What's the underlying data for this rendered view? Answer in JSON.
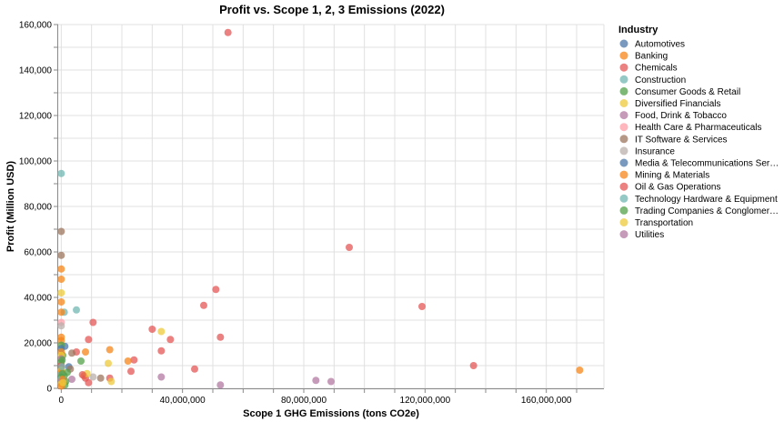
{
  "chart_data": {
    "type": "scatter",
    "title": "Profit vs. Scope 1, 2, 3 Emissions (2022)",
    "xlabel": "Scope 1 GHG Emissions (tons CO2e)",
    "ylabel": "Profit (Million USD)",
    "xlim": [
      -1000000,
      179000000
    ],
    "ylim": [
      0,
      160000
    ],
    "x_ticks": [
      0,
      40000000,
      80000000,
      120000000,
      160000000
    ],
    "x_tick_labels": [
      "0",
      "40,000,000",
      "80,000,000",
      "120,000,000",
      "160,000,000"
    ],
    "y_ticks": [
      0,
      20000,
      40000,
      60000,
      80000,
      100000,
      120000,
      140000,
      160000
    ],
    "y_tick_labels": [
      "0",
      "20,000",
      "40,000",
      "60,000",
      "80,000",
      "100,000",
      "120,000",
      "140,000",
      "160,000"
    ],
    "grid": true,
    "legend": {
      "title": "Industry",
      "position": "right",
      "items": [
        {
          "label": "Automotives",
          "color": "#4c78a8"
        },
        {
          "label": "Banking",
          "color": "#f58518"
        },
        {
          "label": "Chemicals",
          "color": "#e45756"
        },
        {
          "label": "Construction",
          "color": "#72b7b2"
        },
        {
          "label": "Consumer Goods & Retail",
          "color": "#54a24b"
        },
        {
          "label": "Diversified Financials",
          "color": "#eeca3b"
        },
        {
          "label": "Food, Drink & Tobacco",
          "color": "#b279a2"
        },
        {
          "label": "Health Care & Pharmaceuticals",
          "color": "#ff9da6"
        },
        {
          "label": "IT Software & Services",
          "color": "#9d755d"
        },
        {
          "label": "Insurance",
          "color": "#bab0ac"
        },
        {
          "label": "Media & Telecommunications Ser…",
          "color": "#4c78a8"
        },
        {
          "label": "Mining & Materials",
          "color": "#f58518"
        },
        {
          "label": "Oil & Gas Operations",
          "color": "#e45756"
        },
        {
          "label": "Technology Hardware & Equipment",
          "color": "#72b7b2"
        },
        {
          "label": "Trading Companies & Conglomer…",
          "color": "#54a24b"
        },
        {
          "label": "Transportation",
          "color": "#eeca3b"
        },
        {
          "label": "Utilities",
          "color": "#b279a2"
        }
      ]
    },
    "points": [
      {
        "x": 55000000,
        "y": 156500,
        "c": 12
      },
      {
        "x": 95000000,
        "y": 62000,
        "c": 12
      },
      {
        "x": 119000000,
        "y": 36000,
        "c": 12
      },
      {
        "x": 136000000,
        "y": 10000,
        "c": 12
      },
      {
        "x": 171000000,
        "y": 8000,
        "c": 11
      },
      {
        "x": 51000000,
        "y": 43500,
        "c": 12
      },
      {
        "x": 47000000,
        "y": 36500,
        "c": 12
      },
      {
        "x": 30000000,
        "y": 26000,
        "c": 12
      },
      {
        "x": 33000000,
        "y": 25000,
        "c": 15
      },
      {
        "x": 36000000,
        "y": 21500,
        "c": 12
      },
      {
        "x": 52500000,
        "y": 22500,
        "c": 12
      },
      {
        "x": 33000000,
        "y": 16500,
        "c": 12
      },
      {
        "x": 24000000,
        "y": 12500,
        "c": 12
      },
      {
        "x": 22000000,
        "y": 12000,
        "c": 11
      },
      {
        "x": 44000000,
        "y": 8500,
        "c": 12
      },
      {
        "x": 23000000,
        "y": 7500,
        "c": 12
      },
      {
        "x": 33000000,
        "y": 5000,
        "c": 6
      },
      {
        "x": 52500000,
        "y": 1500,
        "c": 16
      },
      {
        "x": 84000000,
        "y": 3500,
        "c": 16
      },
      {
        "x": 89000000,
        "y": 3000,
        "c": 16
      },
      {
        "x": 10500000,
        "y": 29000,
        "c": 12
      },
      {
        "x": 9000000,
        "y": 21500,
        "c": 12
      },
      {
        "x": 16000000,
        "y": 17000,
        "c": 11
      },
      {
        "x": 8000000,
        "y": 16000,
        "c": 11
      },
      {
        "x": 15500000,
        "y": 11000,
        "c": 15
      },
      {
        "x": 6500000,
        "y": 12000,
        "c": 14
      },
      {
        "x": 5000000,
        "y": 16000,
        "c": 12
      },
      {
        "x": 3500000,
        "y": 15500,
        "c": 8
      },
      {
        "x": 5000000,
        "y": 34500,
        "c": 13
      },
      {
        "x": 1000000,
        "y": 33500,
        "c": 13
      },
      {
        "x": 10500000,
        "y": 5000,
        "c": 9
      },
      {
        "x": 13000000,
        "y": 4500,
        "c": 8
      },
      {
        "x": 16000000,
        "y": 4500,
        "c": 12
      },
      {
        "x": 16500000,
        "y": 3000,
        "c": 15
      },
      {
        "x": 9000000,
        "y": 2500,
        "c": 12
      },
      {
        "x": 7500000,
        "y": 5500,
        "c": 11
      },
      {
        "x": 8000000,
        "y": 4500,
        "c": 12
      },
      {
        "x": 8500000,
        "y": 6500,
        "c": 15
      },
      {
        "x": 7000000,
        "y": 6000,
        "c": 2
      },
      {
        "x": 3500000,
        "y": 4000,
        "c": 16
      },
      {
        "x": 2500000,
        "y": 9500,
        "c": 10
      },
      {
        "x": 3000000,
        "y": 8500,
        "c": 8
      },
      {
        "x": 2000000,
        "y": 7000,
        "c": 4
      },
      {
        "x": 1500000,
        "y": 3000,
        "c": 14
      },
      {
        "x": 1200000,
        "y": 1500,
        "c": 4
      },
      {
        "x": 1000000,
        "y": 5500,
        "c": 4
      },
      {
        "x": 1200000,
        "y": 18500,
        "c": 0
      },
      {
        "x": 500000,
        "y": 14500,
        "c": 14
      },
      {
        "x": 0,
        "y": 94500,
        "c": 13
      },
      {
        "x": 0,
        "y": 69000,
        "c": 8
      },
      {
        "x": 0,
        "y": 58500,
        "c": 8
      },
      {
        "x": 0,
        "y": 52500,
        "c": 1
      },
      {
        "x": 0,
        "y": 48000,
        "c": 1
      },
      {
        "x": 0,
        "y": 42000,
        "c": 15
      },
      {
        "x": 0,
        "y": 38000,
        "c": 1
      },
      {
        "x": 0,
        "y": 33500,
        "c": 1
      },
      {
        "x": 0,
        "y": 29000,
        "c": 7
      },
      {
        "x": 0,
        "y": 27500,
        "c": 9
      },
      {
        "x": 0,
        "y": 22500,
        "c": 1
      },
      {
        "x": 0,
        "y": 21000,
        "c": 1
      },
      {
        "x": 0,
        "y": 19000,
        "c": 4
      },
      {
        "x": 0,
        "y": 17500,
        "c": 0
      },
      {
        "x": 0,
        "y": 16000,
        "c": 1
      },
      {
        "x": 0,
        "y": 14500,
        "c": 15
      },
      {
        "x": 0,
        "y": 13000,
        "c": 6
      },
      {
        "x": 0,
        "y": 11500,
        "c": 4
      },
      {
        "x": 0,
        "y": 10000,
        "c": 12
      },
      {
        "x": 0,
        "y": 9000,
        "c": 2
      },
      {
        "x": 0,
        "y": 8000,
        "c": 5
      },
      {
        "x": 0,
        "y": 7000,
        "c": 1
      },
      {
        "x": 0,
        "y": 6000,
        "c": 13
      },
      {
        "x": 0,
        "y": 5000,
        "c": 14
      },
      {
        "x": 0,
        "y": 4000,
        "c": 3
      },
      {
        "x": 0,
        "y": 3000,
        "c": 16
      },
      {
        "x": 0,
        "y": 2000,
        "c": 15
      },
      {
        "x": 0,
        "y": 1000,
        "c": 1
      },
      {
        "x": 400000,
        "y": 6500,
        "c": 4
      },
      {
        "x": 400000,
        "y": 4000,
        "c": 11
      },
      {
        "x": 600000,
        "y": 2500,
        "c": 5
      },
      {
        "x": 300000,
        "y": 12500,
        "c": 14
      },
      {
        "x": 200000,
        "y": 9500,
        "c": 3
      }
    ]
  }
}
